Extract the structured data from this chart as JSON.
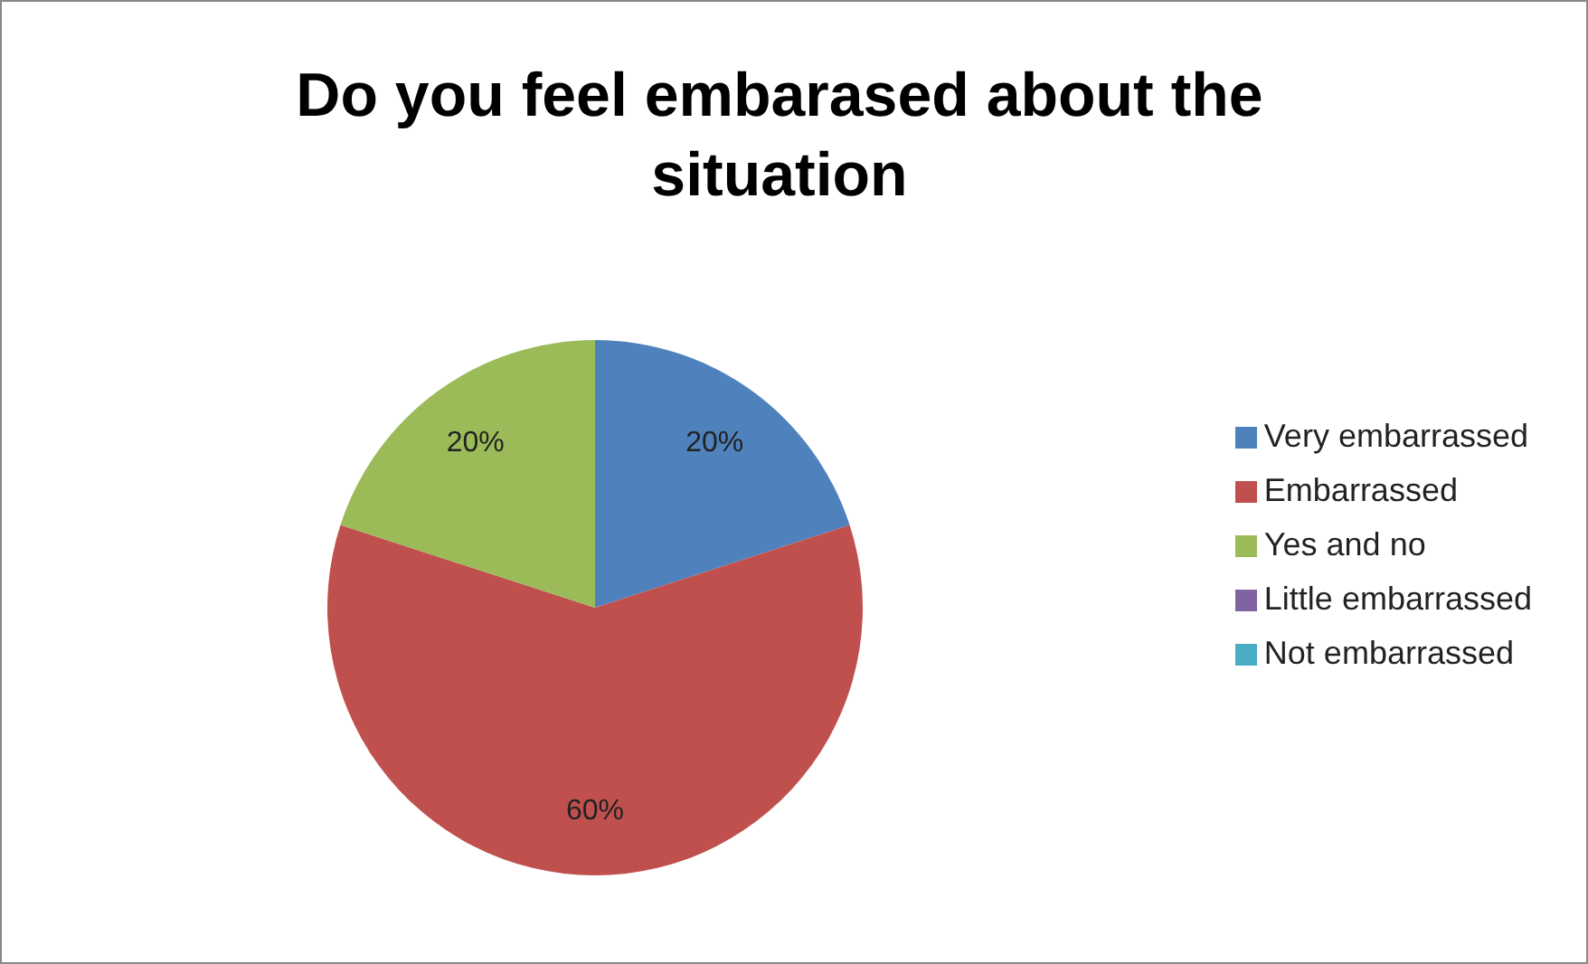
{
  "chart_data": {
    "type": "pie",
    "title": "Do you feel embarased about the situation",
    "categories": [
      "Very embarrassed",
      "Embarrassed",
      "Yes and no",
      "Little embarrassed",
      "Not embarrassed"
    ],
    "values": [
      20,
      60,
      20,
      0,
      0
    ],
    "colors": [
      "#4f81bd",
      "#c0504d",
      "#9bbb59",
      "#8064a2",
      "#4bacc6"
    ],
    "value_labels": [
      "20%",
      "60%",
      "20%",
      null,
      null
    ],
    "legend": "right"
  }
}
